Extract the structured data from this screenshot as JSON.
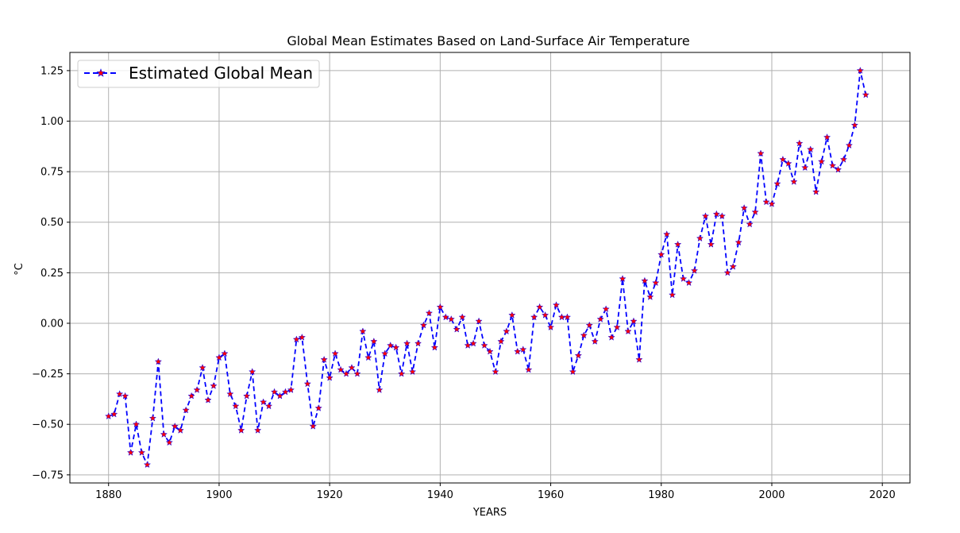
{
  "chart_data": {
    "type": "line",
    "title": "Global Mean Estimates Based on Land-Surface Air Temperature",
    "xlabel": "YEARS",
    "ylabel": "°C",
    "xlim": [
      1873,
      2025
    ],
    "ylim": [
      -0.79,
      1.34
    ],
    "xticks": [
      1880,
      1900,
      1920,
      1940,
      1960,
      1980,
      2000,
      2020
    ],
    "yticks": [
      -0.75,
      -0.5,
      -0.25,
      0.0,
      0.25,
      0.5,
      0.75,
      1.0,
      1.25
    ],
    "xtick_labels": [
      "1880",
      "1900",
      "1920",
      "1940",
      "1960",
      "1980",
      "2000",
      "2020"
    ],
    "ytick_labels": [
      "−0.75",
      "−0.50",
      "−0.25",
      "0.00",
      "0.25",
      "0.50",
      "0.75",
      "1.00",
      "1.25"
    ],
    "grid": true,
    "legend_position": "top-left",
    "colors": {
      "line": "#0000ff",
      "marker": "#ff0000",
      "grid": "#b0b0b0"
    },
    "series": [
      {
        "name": "Estimated Global Mean",
        "line_style": "dashed",
        "marker": "star",
        "x": [
          1880,
          1881,
          1882,
          1883,
          1884,
          1885,
          1886,
          1887,
          1888,
          1889,
          1890,
          1891,
          1892,
          1893,
          1894,
          1895,
          1896,
          1897,
          1898,
          1899,
          1900,
          1901,
          1902,
          1903,
          1904,
          1905,
          1906,
          1907,
          1908,
          1909,
          1910,
          1911,
          1912,
          1913,
          1914,
          1915,
          1916,
          1917,
          1918,
          1919,
          1920,
          1921,
          1922,
          1923,
          1924,
          1925,
          1926,
          1927,
          1928,
          1929,
          1930,
          1931,
          1932,
          1933,
          1934,
          1935,
          1936,
          1937,
          1938,
          1939,
          1940,
          1941,
          1942,
          1943,
          1944,
          1945,
          1946,
          1947,
          1948,
          1949,
          1950,
          1951,
          1952,
          1953,
          1954,
          1955,
          1956,
          1957,
          1958,
          1959,
          1960,
          1961,
          1962,
          1963,
          1964,
          1965,
          1966,
          1967,
          1968,
          1969,
          1970,
          1971,
          1972,
          1973,
          1974,
          1975,
          1976,
          1977,
          1978,
          1979,
          1980,
          1981,
          1982,
          1983,
          1984,
          1985,
          1986,
          1987,
          1988,
          1989,
          1990,
          1991,
          1992,
          1993,
          1994,
          1995,
          1996,
          1997,
          1998,
          1999,
          2000,
          2001,
          2002,
          2003,
          2004,
          2005,
          2006,
          2007,
          2008,
          2009,
          2010,
          2011,
          2012,
          2013,
          2014,
          2015,
          2016,
          2017
        ],
        "y": [
          -0.46,
          -0.45,
          -0.35,
          -0.36,
          -0.64,
          -0.5,
          -0.64,
          -0.7,
          -0.47,
          -0.19,
          -0.55,
          -0.59,
          -0.51,
          -0.53,
          -0.43,
          -0.36,
          -0.33,
          -0.22,
          -0.38,
          -0.31,
          -0.17,
          -0.15,
          -0.35,
          -0.41,
          -0.53,
          -0.36,
          -0.24,
          -0.53,
          -0.39,
          -0.41,
          -0.34,
          -0.36,
          -0.34,
          -0.33,
          -0.08,
          -0.07,
          -0.3,
          -0.51,
          -0.42,
          -0.18,
          -0.27,
          -0.15,
          -0.23,
          -0.25,
          -0.22,
          -0.25,
          -0.04,
          -0.17,
          -0.09,
          -0.33,
          -0.15,
          -0.11,
          -0.12,
          -0.25,
          -0.1,
          -0.24,
          -0.1,
          -0.01,
          0.05,
          -0.12,
          0.08,
          0.03,
          0.02,
          -0.03,
          0.03,
          -0.11,
          -0.1,
          0.01,
          -0.11,
          -0.14,
          -0.24,
          -0.09,
          -0.04,
          0.04,
          -0.14,
          -0.13,
          -0.23,
          0.03,
          0.08,
          0.04,
          -0.02,
          0.09,
          0.03,
          0.03,
          -0.24,
          -0.16,
          -0.06,
          -0.01,
          -0.09,
          0.02,
          0.07,
          -0.07,
          -0.02,
          0.22,
          -0.04,
          0.01,
          -0.18,
          0.21,
          0.13,
          0.2,
          0.34,
          0.44,
          0.14,
          0.39,
          0.22,
          0.2,
          0.26,
          0.42,
          0.53,
          0.39,
          0.54,
          0.53,
          0.25,
          0.28,
          0.4,
          0.57,
          0.49,
          0.55,
          0.84,
          0.6,
          0.59,
          0.69,
          0.81,
          0.79,
          0.7,
          0.89,
          0.77,
          0.86,
          0.65,
          0.8,
          0.92,
          0.78,
          0.76,
          0.81,
          0.88,
          0.98,
          1.25,
          1.13
        ]
      }
    ]
  }
}
